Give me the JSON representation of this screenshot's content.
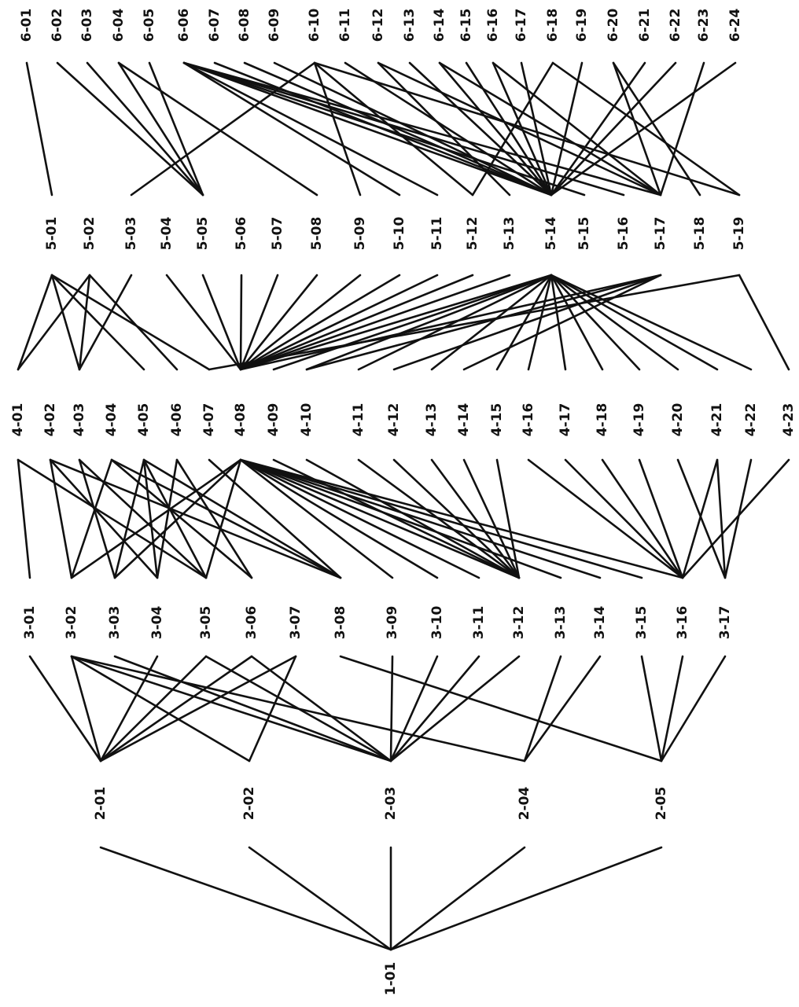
{
  "colors": {
    "ink": "#111111",
    "background": "#ffffff"
  },
  "levels": [
    {
      "level": 1,
      "nodes": [
        "1-01"
      ]
    },
    {
      "level": 2,
      "nodes": [
        "2-01",
        "2-02",
        "2-03",
        "2-04",
        "2-05"
      ]
    },
    {
      "level": 3,
      "nodes": [
        "3-01",
        "3-02",
        "3-03",
        "3-04",
        "3-05",
        "3-06",
        "3-07",
        "3-08",
        "3-09",
        "3-10",
        "3-11",
        "3-12",
        "3-13",
        "3-14",
        "3-15",
        "3-16",
        "3-17"
      ]
    },
    {
      "level": 4,
      "nodes": [
        "4-01",
        "4-02",
        "4-03",
        "4-04",
        "4-05",
        "4-06",
        "4-07",
        "4-08",
        "4-09",
        "4-10",
        "4-11",
        "4-12",
        "4-13",
        "4-14",
        "4-15",
        "4-16",
        "4-17",
        "4-18",
        "4-19",
        "4-20",
        "4-21",
        "4-22",
        "4-23"
      ]
    },
    {
      "level": 5,
      "nodes": [
        "5-01",
        "5-02",
        "5-03",
        "5-04",
        "5-05",
        "5-06",
        "5-07",
        "5-08",
        "5-09",
        "5-10",
        "5-11",
        "5-12",
        "5-13",
        "5-14",
        "5-15",
        "5-16",
        "5-17",
        "5-18",
        "5-19"
      ]
    },
    {
      "level": 6,
      "nodes": [
        "6-01",
        "6-02",
        "6-03",
        "6-04",
        "6-05",
        "6-06",
        "6-07",
        "6-08",
        "6-09",
        "6-10",
        "6-11",
        "6-12",
        "6-13",
        "6-14",
        "6-15",
        "6-16",
        "6-17",
        "6-18",
        "6-19",
        "6-20",
        "6-21",
        "6-22",
        "6-23",
        "6-24"
      ]
    }
  ],
  "edges": [
    [
      "1-01",
      "2-01"
    ],
    [
      "1-01",
      "2-02"
    ],
    [
      "1-01",
      "2-03"
    ],
    [
      "1-01",
      "2-04"
    ],
    [
      "1-01",
      "2-05"
    ],
    [
      "2-01",
      "3-01"
    ],
    [
      "2-01",
      "3-02"
    ],
    [
      "2-01",
      "3-04"
    ],
    [
      "2-01",
      "3-05"
    ],
    [
      "2-01",
      "3-06"
    ],
    [
      "2-01",
      "3-07"
    ],
    [
      "2-02",
      "3-02"
    ],
    [
      "2-02",
      "3-07"
    ],
    [
      "2-03",
      "3-02"
    ],
    [
      "2-03",
      "3-03"
    ],
    [
      "2-03",
      "3-05"
    ],
    [
      "2-03",
      "3-06"
    ],
    [
      "2-03",
      "3-09"
    ],
    [
      "2-03",
      "3-10"
    ],
    [
      "2-03",
      "3-11"
    ],
    [
      "2-03",
      "3-12"
    ],
    [
      "2-04",
      "3-02"
    ],
    [
      "2-04",
      "3-13"
    ],
    [
      "2-04",
      "3-14"
    ],
    [
      "2-05",
      "3-08"
    ],
    [
      "2-05",
      "3-15"
    ],
    [
      "2-05",
      "3-16"
    ],
    [
      "2-05",
      "3-17"
    ],
    [
      "3-01",
      "4-01"
    ],
    [
      "3-02",
      "4-02"
    ],
    [
      "3-02",
      "4-04"
    ],
    [
      "3-02",
      "4-08"
    ],
    [
      "3-03",
      "4-03"
    ],
    [
      "3-03",
      "4-05"
    ],
    [
      "3-03",
      "4-08"
    ],
    [
      "3-04",
      "4-02"
    ],
    [
      "3-04",
      "4-05"
    ],
    [
      "3-04",
      "4-06"
    ],
    [
      "3-05",
      "4-01"
    ],
    [
      "3-05",
      "4-03"
    ],
    [
      "3-05",
      "4-05"
    ],
    [
      "3-05",
      "4-08"
    ],
    [
      "3-06",
      "4-04"
    ],
    [
      "3-06",
      "4-06"
    ],
    [
      "3-08",
      "4-02"
    ],
    [
      "3-08",
      "4-04"
    ],
    [
      "3-08",
      "4-05"
    ],
    [
      "3-08",
      "4-07"
    ],
    [
      "3-09",
      "4-08"
    ],
    [
      "3-10",
      "4-08"
    ],
    [
      "3-11",
      "4-08"
    ],
    [
      "3-12",
      "4-08"
    ],
    [
      "3-12",
      "4-09"
    ],
    [
      "3-12",
      "4-10"
    ],
    [
      "3-12",
      "4-11"
    ],
    [
      "3-12",
      "4-12"
    ],
    [
      "3-12",
      "4-13"
    ],
    [
      "3-12",
      "4-14"
    ],
    [
      "3-12",
      "4-15"
    ],
    [
      "3-13",
      "4-08"
    ],
    [
      "3-14",
      "4-08"
    ],
    [
      "3-15",
      "4-08"
    ],
    [
      "3-16",
      "4-08"
    ],
    [
      "3-16",
      "4-16"
    ],
    [
      "3-16",
      "4-17"
    ],
    [
      "3-16",
      "4-18"
    ],
    [
      "3-16",
      "4-19"
    ],
    [
      "3-16",
      "4-21"
    ],
    [
      "3-16",
      "4-23"
    ],
    [
      "3-17",
      "4-20"
    ],
    [
      "3-17",
      "4-21"
    ],
    [
      "3-17",
      "4-22"
    ],
    [
      "4-01",
      "5-01"
    ],
    [
      "4-01",
      "5-02"
    ],
    [
      "4-03",
      "5-01"
    ],
    [
      "4-03",
      "5-02"
    ],
    [
      "4-03",
      "5-03"
    ],
    [
      "4-05",
      "5-01"
    ],
    [
      "4-06",
      "5-02"
    ],
    [
      "4-07",
      "5-01"
    ],
    [
      "4-08",
      "5-04"
    ],
    [
      "4-08",
      "5-05"
    ],
    [
      "4-08",
      "5-06"
    ],
    [
      "4-08",
      "5-07"
    ],
    [
      "4-08",
      "5-08"
    ],
    [
      "4-08",
      "5-09"
    ],
    [
      "4-08",
      "5-10"
    ],
    [
      "4-08",
      "5-11"
    ],
    [
      "4-08",
      "5-12"
    ],
    [
      "4-08",
      "5-13"
    ],
    [
      "4-08",
      "5-14"
    ],
    [
      "4-08",
      "5-17"
    ],
    [
      "4-09",
      "5-14"
    ],
    [
      "4-10",
      "5-14"
    ],
    [
      "4-10",
      "5-17"
    ],
    [
      "4-11",
      "5-14"
    ],
    [
      "4-12",
      "5-17"
    ],
    [
      "4-13",
      "5-14"
    ],
    [
      "4-14",
      "5-17"
    ],
    [
      "4-15",
      "5-14"
    ],
    [
      "4-16",
      "5-14"
    ],
    [
      "4-17",
      "5-14"
    ],
    [
      "4-18",
      "5-14"
    ],
    [
      "4-19",
      "5-14"
    ],
    [
      "4-20",
      "5-14"
    ],
    [
      "4-21",
      "5-14"
    ],
    [
      "4-22",
      "5-14"
    ],
    [
      "4-23",
      "5-19"
    ],
    [
      "4-07",
      "5-19"
    ],
    [
      "5-01",
      "6-01"
    ],
    [
      "5-03",
      "6-10"
    ],
    [
      "5-05",
      "6-02"
    ],
    [
      "5-05",
      "6-03"
    ],
    [
      "5-05",
      "6-04"
    ],
    [
      "5-05",
      "6-05"
    ],
    [
      "5-08",
      "6-04"
    ],
    [
      "5-09",
      "6-10"
    ],
    [
      "5-10",
      "6-06"
    ],
    [
      "5-11",
      "6-06"
    ],
    [
      "5-12",
      "6-10"
    ],
    [
      "5-13",
      "6-12"
    ],
    [
      "5-14",
      "6-06"
    ],
    [
      "5-14",
      "6-07"
    ],
    [
      "5-14",
      "6-08"
    ],
    [
      "5-14",
      "6-09"
    ],
    [
      "5-14",
      "6-11"
    ],
    [
      "5-14",
      "6-13"
    ],
    [
      "5-14",
      "6-14"
    ],
    [
      "5-14",
      "6-15"
    ],
    [
      "5-14",
      "6-16"
    ],
    [
      "5-14",
      "6-17"
    ],
    [
      "5-14",
      "6-19"
    ],
    [
      "5-14",
      "6-21"
    ],
    [
      "5-14",
      "6-22"
    ],
    [
      "5-14",
      "6-24"
    ],
    [
      "5-15",
      "6-06"
    ],
    [
      "5-16",
      "6-06"
    ],
    [
      "5-17",
      "6-06"
    ],
    [
      "5-17",
      "6-12"
    ],
    [
      "5-17",
      "6-14"
    ],
    [
      "5-17",
      "6-16"
    ],
    [
      "5-17",
      "6-20"
    ],
    [
      "5-17",
      "6-23"
    ],
    [
      "5-12",
      "6-18"
    ],
    [
      "5-18",
      "6-20"
    ],
    [
      "5-19",
      "6-10"
    ],
    [
      "5-19",
      "6-18"
    ]
  ]
}
